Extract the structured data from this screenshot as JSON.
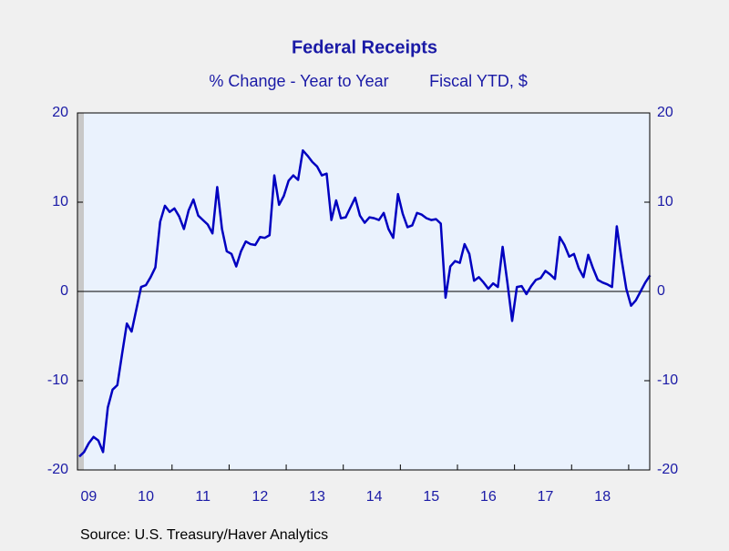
{
  "chart_data": {
    "type": "line",
    "title": "Federal Receipts",
    "subtitle": "% Change - Year to Year",
    "units": "Fiscal YTD, $",
    "source": "Source:  U.S. Treasury/Haver Analytics",
    "categories": [
      null,
      null,
      "09",
      null,
      null,
      null,
      null,
      null,
      null,
      null,
      null,
      null,
      null,
      null,
      "10",
      null,
      null,
      null,
      null,
      null,
      null,
      null,
      null,
      null,
      null,
      null,
      "11",
      null,
      null,
      null,
      null,
      null,
      null,
      null,
      null,
      null,
      null,
      null,
      "12",
      null,
      null,
      null,
      null,
      null,
      null,
      null,
      null,
      null,
      null,
      null,
      "13",
      null,
      null,
      null,
      null,
      null,
      null,
      null,
      null,
      null,
      null,
      null,
      "14",
      null,
      null,
      null,
      null,
      null,
      null,
      null,
      null,
      null,
      null,
      null,
      "15",
      null,
      null,
      null,
      null,
      null,
      null,
      null,
      null,
      null,
      null,
      null,
      "16",
      null,
      null,
      null,
      null,
      null,
      null,
      null,
      null,
      null,
      null,
      null,
      "17",
      null,
      null,
      null,
      null,
      null,
      null,
      null,
      null,
      null,
      null,
      null,
      "18",
      null,
      null,
      null,
      null,
      null,
      null,
      null,
      null,
      null,
      null
    ],
    "series": [
      {
        "name": "Federal Receipts",
        "color": "#0000c0",
        "values": [
          -18.5,
          -18,
          -17,
          -16.3,
          -16.7,
          -18,
          -13,
          -11,
          -10.5,
          -7,
          -3.6,
          -4.5,
          -2,
          0.5,
          0.7,
          1.6,
          2.7,
          7.8,
          9.6,
          8.9,
          9.3,
          8.4,
          7,
          9.1,
          10.3,
          8.5,
          8.0,
          7.5,
          6.5,
          11.7,
          7,
          4.5,
          4.2,
          2.8,
          4.5,
          5.6,
          5.3,
          5.2,
          6.1,
          6.0,
          6.3,
          13.0,
          9.7,
          10.7,
          12.4,
          13.0,
          12.5,
          15.8,
          15.2,
          14.5,
          14.0,
          13.0,
          13.2,
          8.0,
          10.2,
          8.2,
          8.3,
          9.4,
          10.5,
          8.5,
          7.7,
          8.3,
          8.2,
          8.0,
          8.8,
          7.0,
          6.0,
          10.9,
          8.7,
          7.2,
          7.4,
          8.8,
          8.6,
          8.2,
          8.0,
          8.1,
          7.6,
          -0.7,
          2.8,
          3.4,
          3.2,
          5.3,
          4.2,
          1.2,
          1.6,
          1.0,
          0.3,
          0.9,
          0.5,
          5.0,
          1.0,
          -3.3,
          0.5,
          0.6,
          -0.3,
          0.6,
          1.3,
          1.5,
          2.3,
          1.9,
          1.4,
          6.1,
          5.2,
          3.9,
          4.2,
          2.6,
          1.6,
          4.1,
          2.6,
          1.3,
          1.0,
          0.8,
          0.5,
          7.3,
          3.6,
          0.3,
          -1.6,
          -1.0,
          0,
          1.0,
          1.8
        ]
      }
    ],
    "ylim": [
      -20,
      20
    ],
    "yticks": [
      -20,
      -10,
      0,
      10,
      20
    ],
    "y2lim": [
      -20,
      20
    ],
    "y2ticks": [
      -20,
      -10,
      0,
      10,
      20
    ],
    "zero_line": true
  }
}
